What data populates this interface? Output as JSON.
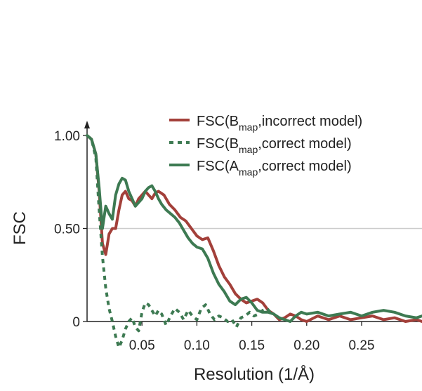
{
  "chart_data": {
    "type": "line",
    "xlabel": "Resolution (1/Å)",
    "ylabel": "FSC",
    "xlim": [
      0.0,
      0.305
    ],
    "ylim": [
      -0.14,
      1.0
    ],
    "x_ticks": [
      {
        "value": 0.05,
        "label": "0.05"
      },
      {
        "value": 0.1,
        "label": "0.10"
      },
      {
        "value": 0.15,
        "label": "0.15"
      },
      {
        "value": 0.2,
        "label": "0.20"
      },
      {
        "value": 0.25,
        "label": "0.25"
      }
    ],
    "y_ticks": [
      {
        "value": 1.0,
        "label": "1.00"
      },
      {
        "value": 0.5,
        "label": "0.50"
      },
      {
        "value": 0.0,
        "label": "0"
      }
    ],
    "reference_line": 0.5,
    "grid": false,
    "legend_position": "top-right",
    "colors": {
      "incorrect_Bmap": "#a3403a",
      "correct_Bmap": "#3d7a52",
      "correct_Amap": "#3d7a52",
      "reference": "#cccccc",
      "axis": "#222222"
    },
    "series": [
      {
        "name": "FSC(B_map, incorrect model)",
        "legend": {
          "base": "FSC(B",
          "sub": "map",
          "rest": ",incorrect model)"
        },
        "style": "solid",
        "color": "#a3403a",
        "x": [
          0.0,
          0.004,
          0.008,
          0.011,
          0.014,
          0.017,
          0.02,
          0.023,
          0.026,
          0.029,
          0.032,
          0.035,
          0.038,
          0.041,
          0.044,
          0.047,
          0.05,
          0.053,
          0.056,
          0.059,
          0.062,
          0.065,
          0.07,
          0.075,
          0.08,
          0.085,
          0.09,
          0.095,
          0.1,
          0.105,
          0.11,
          0.115,
          0.12,
          0.125,
          0.13,
          0.135,
          0.14,
          0.145,
          0.15,
          0.155,
          0.16,
          0.165,
          0.17,
          0.175,
          0.18,
          0.185,
          0.19,
          0.195,
          0.2,
          0.21,
          0.22,
          0.23,
          0.24,
          0.25,
          0.26,
          0.27,
          0.28,
          0.29,
          0.3,
          0.305
        ],
        "y": [
          1.0,
          0.98,
          0.9,
          0.7,
          0.42,
          0.36,
          0.47,
          0.5,
          0.5,
          0.6,
          0.68,
          0.7,
          0.66,
          0.65,
          0.62,
          0.66,
          0.68,
          0.7,
          0.68,
          0.66,
          0.69,
          0.7,
          0.68,
          0.63,
          0.6,
          0.56,
          0.54,
          0.5,
          0.46,
          0.44,
          0.45,
          0.38,
          0.3,
          0.24,
          0.2,
          0.15,
          0.12,
          0.1,
          0.11,
          0.12,
          0.1,
          0.06,
          0.04,
          0.01,
          0.02,
          0.04,
          0.03,
          0.01,
          0.0,
          0.03,
          0.01,
          0.03,
          0.01,
          0.02,
          0.03,
          0.01,
          0.02,
          0.0,
          0.01,
          0.0
        ]
      },
      {
        "name": "FSC(B_map, correct model)",
        "legend": {
          "base": "FSC(B",
          "sub": "map",
          "rest": ",correct model)"
        },
        "style": "dashed",
        "color": "#3d7a52",
        "x": [
          0.0,
          0.004,
          0.008,
          0.011,
          0.014,
          0.017,
          0.02,
          0.023,
          0.026,
          0.029,
          0.032,
          0.035,
          0.038,
          0.041,
          0.044,
          0.047,
          0.05,
          0.053,
          0.056,
          0.059,
          0.062,
          0.065,
          0.068,
          0.072,
          0.076,
          0.08,
          0.084,
          0.088,
          0.092,
          0.096,
          0.1,
          0.104,
          0.108,
          0.112,
          0.116,
          0.12,
          0.124,
          0.128,
          0.132,
          0.136,
          0.14,
          0.144,
          0.148,
          0.152,
          0.156,
          0.16,
          0.164,
          0.168
        ],
        "y": [
          1.0,
          0.98,
          0.88,
          0.6,
          0.35,
          0.18,
          0.07,
          0.0,
          -0.08,
          -0.14,
          -0.1,
          -0.04,
          0.0,
          0.02,
          -0.03,
          -0.05,
          0.05,
          0.1,
          0.09,
          0.06,
          0.03,
          0.06,
          0.04,
          -0.02,
          0.03,
          0.07,
          0.05,
          0.01,
          0.06,
          0.03,
          0.01,
          0.07,
          0.09,
          0.04,
          0.01,
          0.03,
          0.02,
          0.0,
          0.01,
          -0.03,
          0.02,
          0.03,
          0.05,
          0.03,
          0.04,
          0.06,
          0.07,
          0.04
        ]
      },
      {
        "name": "FSC(A_map, correct model)",
        "legend": {
          "base": "FSC(A",
          "sub": "map",
          "rest": ",correct model)"
        },
        "style": "solid",
        "color": "#3d7a52",
        "x": [
          0.0,
          0.004,
          0.008,
          0.011,
          0.014,
          0.017,
          0.02,
          0.023,
          0.026,
          0.029,
          0.032,
          0.035,
          0.038,
          0.041,
          0.044,
          0.047,
          0.05,
          0.053,
          0.056,
          0.059,
          0.062,
          0.065,
          0.068,
          0.072,
          0.076,
          0.08,
          0.084,
          0.088,
          0.092,
          0.096,
          0.1,
          0.105,
          0.11,
          0.115,
          0.12,
          0.125,
          0.13,
          0.135,
          0.14,
          0.145,
          0.15,
          0.155,
          0.16,
          0.165,
          0.17,
          0.175,
          0.18,
          0.185,
          0.19,
          0.195,
          0.2,
          0.21,
          0.22,
          0.23,
          0.24,
          0.25,
          0.26,
          0.27,
          0.28,
          0.29,
          0.3,
          0.305
        ],
        "y": [
          1.0,
          0.98,
          0.9,
          0.72,
          0.5,
          0.62,
          0.58,
          0.55,
          0.68,
          0.74,
          0.77,
          0.76,
          0.7,
          0.66,
          0.62,
          0.64,
          0.66,
          0.7,
          0.72,
          0.73,
          0.7,
          0.66,
          0.63,
          0.6,
          0.58,
          0.56,
          0.53,
          0.49,
          0.45,
          0.42,
          0.4,
          0.39,
          0.34,
          0.26,
          0.2,
          0.16,
          0.11,
          0.09,
          0.12,
          0.13,
          0.1,
          0.06,
          0.05,
          0.05,
          0.04,
          0.02,
          0.01,
          0.0,
          0.03,
          0.05,
          0.04,
          0.05,
          0.03,
          0.04,
          0.05,
          0.03,
          0.05,
          0.06,
          0.05,
          0.03,
          0.02,
          0.03
        ]
      }
    ]
  }
}
